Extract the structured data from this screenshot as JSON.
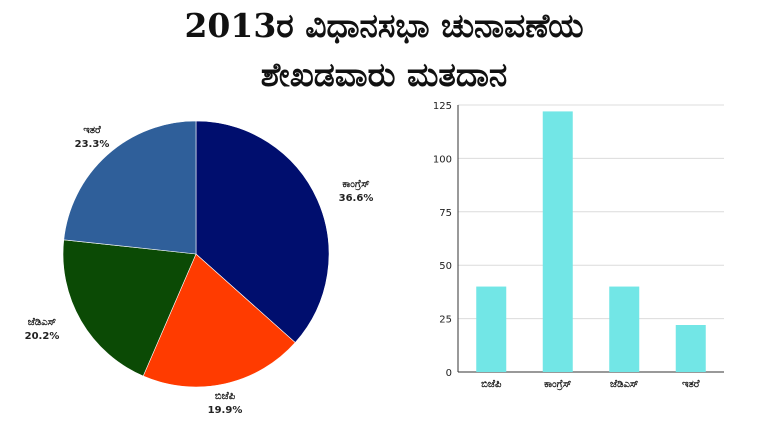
{
  "title": {
    "line1": "2013ರ ವಿಧಾನಸಭಾ ಚುನಾವಣೆಯ",
    "line2": "ಶೇಖಡವಾರು ಮತದಾನ"
  },
  "colors": {
    "congress": "#000e6e",
    "bjp": "#ff3b00",
    "jds": "#0b4a05",
    "others": "#2f5f9a",
    "bar": "#72e6e6",
    "grid": "#dcdcdc",
    "axis": "#333333"
  },
  "chart_data": [
    {
      "type": "pie",
      "slices": [
        {
          "label": "ಕಾಂಗ್ರೆಸ್",
          "value": 36.6,
          "display": "36.6%",
          "color": "#000e6e"
        },
        {
          "label": "ಬಿಜೆಪಿ",
          "value": 19.9,
          "display": "19.9%",
          "color": "#ff3b00"
        },
        {
          "label": "ಜೆಡಿಎಸ್",
          "value": 20.2,
          "display": "20.2%",
          "color": "#0b4a05"
        },
        {
          "label": "ಇತರೆ",
          "value": 23.3,
          "display": "23.3%",
          "color": "#2f5f9a"
        }
      ]
    },
    {
      "type": "bar",
      "categories": [
        "ಬಿಜೆಪಿ",
        "ಕಾಂಗ್ರೆಸ್",
        "ಜೆಡಿಎಸ್",
        "ಇತರೆ"
      ],
      "values": [
        40,
        122,
        40,
        22
      ],
      "ylim": [
        0,
        125
      ],
      "yticks": [
        "0",
        "25",
        "50",
        "75",
        "100",
        "125"
      ],
      "grid": true
    }
  ]
}
